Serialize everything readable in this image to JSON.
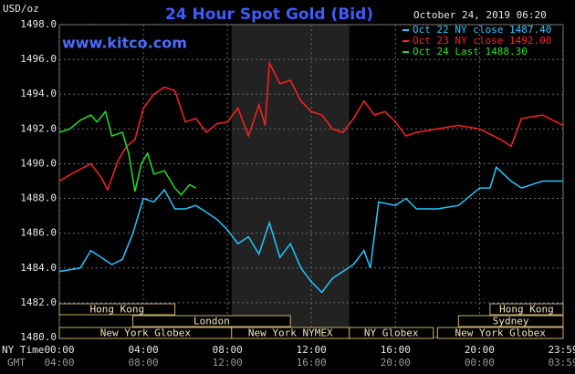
{
  "chart_data": {
    "type": "line",
    "title": "24 Hour Spot Gold (Bid)",
    "website": "www.kitco.com",
    "y_unit": "USD/oz",
    "timestamp": "October 24, 2019 06:20",
    "x_axis_label": "NY Time",
    "x2_axis_label": "GMT",
    "xlim": [
      0,
      23.98
    ],
    "ylim": [
      1480,
      1498
    ],
    "grid": true,
    "xticks": [
      {
        "value": 0,
        "label": "00:00"
      },
      {
        "value": 4,
        "label": "04:00"
      },
      {
        "value": 8,
        "label": "08:00"
      },
      {
        "value": 12,
        "label": "12:00"
      },
      {
        "value": 16,
        "label": "16:00"
      },
      {
        "value": 20,
        "label": "20:00"
      },
      {
        "value": 23.98,
        "label": "23:59"
      }
    ],
    "x2ticks": [
      {
        "value": 0,
        "label": "04:00"
      },
      {
        "value": 4,
        "label": "08:00"
      },
      {
        "value": 8,
        "label": "12:00"
      },
      {
        "value": 12,
        "label": "16:00"
      },
      {
        "value": 16,
        "label": "20:00"
      },
      {
        "value": 20,
        "label": "00:00"
      },
      {
        "value": 23.98,
        "label": "03:59"
      }
    ],
    "yticks": [
      {
        "value": 1480,
        "label": "1480.0"
      },
      {
        "value": 1482,
        "label": "1482.0"
      },
      {
        "value": 1484,
        "label": "1484.0"
      },
      {
        "value": 1486,
        "label": "1486.0"
      },
      {
        "value": 1488,
        "label": "1488.0"
      },
      {
        "value": 1490,
        "label": "1490.0"
      },
      {
        "value": 1492,
        "label": "1492.0"
      },
      {
        "value": 1494,
        "label": "1494.0"
      },
      {
        "value": 1496,
        "label": "1496.0"
      },
      {
        "value": 1498,
        "label": "1498.0"
      }
    ],
    "sessions": [
      {
        "name": "Hong Kong",
        "start": 0,
        "end": 5.5,
        "row": 0
      },
      {
        "name": "Hong Kong",
        "start": 20.5,
        "end": 23.98,
        "row": 0
      },
      {
        "name": "London",
        "start": 3.5,
        "end": 11,
        "row": 1
      },
      {
        "name": "Sydney",
        "start": 19,
        "end": 23.98,
        "row": 1
      },
      {
        "name": "New York Globex",
        "start": 0,
        "end": 8.2,
        "row": 2
      },
      {
        "name": "New York NYMEX",
        "start": 8.2,
        "end": 13.8,
        "row": 2
      },
      {
        "name": "NY Globex",
        "start": 13.8,
        "end": 17.8,
        "row": 2
      },
      {
        "name": "New York Globex",
        "start": 18,
        "end": 23.98,
        "row": 2
      }
    ],
    "series": [
      {
        "name": "Oct 22 NY close 1487.40",
        "color": "#20c8ff",
        "x": [
          0,
          1,
          1.5,
          2,
          2.5,
          3,
          3.5,
          4,
          4.5,
          5,
          5.5,
          6,
          6.5,
          7,
          7.5,
          8,
          8.5,
          9,
          9.5,
          10,
          10.5,
          11,
          11.5,
          12,
          12.5,
          13,
          13.5,
          14,
          14.5,
          14.8,
          15.2,
          16,
          16.5,
          17,
          18,
          19,
          20,
          20.5,
          20.8,
          21.5,
          22,
          23,
          23.98
        ],
        "values": [
          1483.8,
          1484,
          1485,
          1484.6,
          1484.2,
          1484.5,
          1486,
          1488,
          1487.8,
          1488.5,
          1487.4,
          1487.4,
          1487.6,
          1487.2,
          1486.8,
          1486.2,
          1485.4,
          1485.8,
          1484.8,
          1486.6,
          1484.6,
          1485.4,
          1484,
          1483.2,
          1482.6,
          1483.4,
          1483.8,
          1484.2,
          1485,
          1484,
          1487.8,
          1487.6,
          1488,
          1487.4,
          1487.4,
          1487.6,
          1488.6,
          1488.6,
          1489.8,
          1489,
          1488.6,
          1489,
          1489
        ]
      },
      {
        "name": "Oct 23 NY close 1492.00",
        "color": "#ff2020",
        "x": [
          0,
          0.7,
          1.5,
          2,
          2.3,
          2.8,
          3.2,
          3.6,
          4,
          4.5,
          5,
          5.5,
          6,
          6.5,
          7,
          7.5,
          8,
          8.5,
          9,
          9.5,
          9.8,
          10,
          10.5,
          11,
          11.5,
          12,
          12.5,
          13,
          13.5,
          14,
          14.5,
          15,
          15.5,
          16,
          16.5,
          17,
          18,
          19,
          20,
          21,
          21.5,
          22,
          23,
          23.98
        ],
        "values": [
          1489,
          1489.5,
          1490,
          1489.2,
          1488.5,
          1490.2,
          1491,
          1491.4,
          1493.2,
          1494,
          1494.4,
          1494.2,
          1492.4,
          1492.6,
          1491.8,
          1492.3,
          1492.4,
          1493.2,
          1491.6,
          1493.4,
          1492.2,
          1495.8,
          1494.6,
          1494.8,
          1493.6,
          1493,
          1492.8,
          1492,
          1491.8,
          1492.6,
          1493.6,
          1492.8,
          1493,
          1492.4,
          1491.6,
          1491.8,
          1492,
          1492.2,
          1492,
          1491.4,
          1491,
          1492.6,
          1492.8,
          1492.2
        ]
      },
      {
        "name": "Oct 24 Last 1488.30",
        "color": "#20e020",
        "x": [
          0,
          0.5,
          1,
          1.5,
          1.8,
          2.2,
          2.5,
          3,
          3.3,
          3.6,
          3.9,
          4.2,
          4.5,
          5,
          5.5,
          5.8,
          6.2,
          6.5
        ],
        "values": [
          1491.8,
          1492,
          1492.5,
          1492.8,
          1492.4,
          1493,
          1491.6,
          1491.8,
          1490.6,
          1488.4,
          1490,
          1490.6,
          1489.4,
          1489.6,
          1488.6,
          1488.2,
          1488.8,
          1488.6
        ]
      }
    ]
  }
}
